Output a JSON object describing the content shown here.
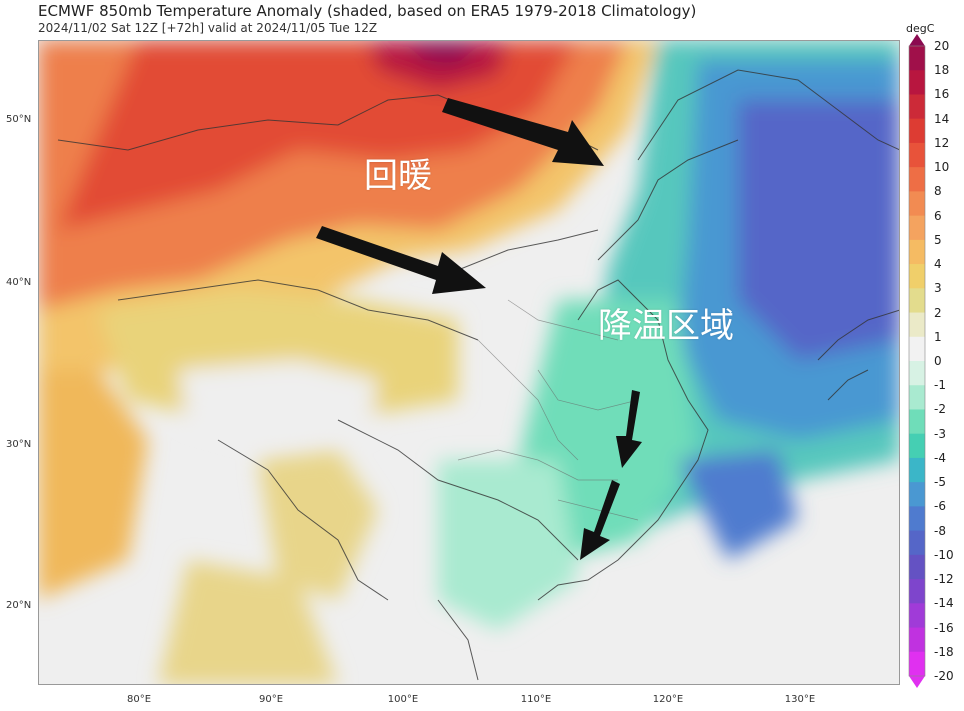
{
  "header": {
    "title": "ECMWF 850mb Temperature Anomaly (shaded, based on ERA5 1979-2018 Climatology)",
    "subtitle": "2024/11/02 Sat 12Z [+72h] valid at 2024/11/05 Tue 12Z"
  },
  "map": {
    "lat_labels": [
      "50°N",
      "40°N",
      "30°N",
      "20°N"
    ],
    "lon_labels": [
      "80°E",
      "90°E",
      "100°E",
      "110°E",
      "120°E",
      "130°E"
    ],
    "annotations": {
      "warming": "回暖",
      "cooling": "降温区域"
    },
    "arrows": [
      {
        "meaning": "warm air moving east toward Northeast China"
      },
      {
        "meaning": "warm air moving east toward North China"
      },
      {
        "meaning": "cooling spreading south"
      },
      {
        "meaning": "cooling reaching South China coast"
      }
    ]
  },
  "colorbar": {
    "unit": "degC",
    "ticks": [
      "20",
      "18",
      "16",
      "14",
      "12",
      "10",
      "8",
      "6",
      "5",
      "4",
      "3",
      "2",
      "1",
      "0",
      "-1",
      "-2",
      "-3",
      "-4",
      "-5",
      "-6",
      "-8",
      "-10",
      "-12",
      "-14",
      "-16",
      "-18",
      "-20"
    ],
    "colors": [
      "#8b0a50",
      "#a0104a",
      "#b8163f",
      "#cc2a38",
      "#dd3c33",
      "#e8533a",
      "#ee6e45",
      "#f28b52",
      "#f4a35f",
      "#f5bb63",
      "#f0cf6a",
      "#e3dc8d",
      "#ebeac8",
      "#f2f2f2",
      "#d7f2e4",
      "#a9ead0",
      "#6fddb9",
      "#45cfb3",
      "#3bb6c8",
      "#4a98d2",
      "#4f7bcf",
      "#5566c8",
      "#6452c3",
      "#7e45cc",
      "#a03bd8",
      "#c032e0",
      "#e030f0"
    ]
  }
}
